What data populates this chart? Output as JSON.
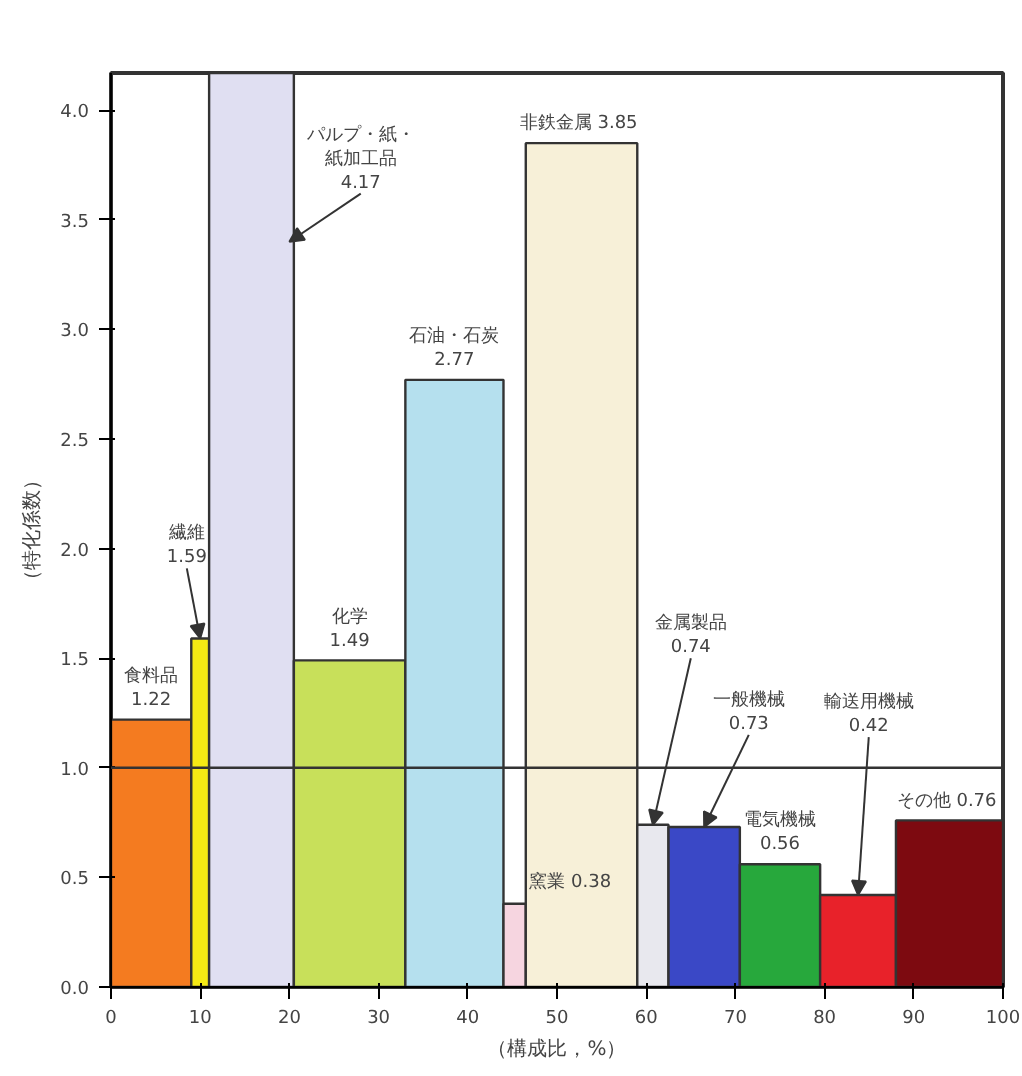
{
  "chart_data": {
    "type": "histogram",
    "xlabel": "（構成比，%）",
    "ylabel": "（特化係数）",
    "bins": [
      0,
      9,
      11,
      20.5,
      33,
      44,
      46.5,
      59,
      62.5,
      70.5,
      79.5,
      88,
      100
    ],
    "values": [
      1.22,
      1.59,
      4.17,
      1.49,
      2.77,
      0.38,
      3.85,
      0.74,
      0.73,
      0.56,
      0.42,
      0.76
    ],
    "colors": [
      "#f47b20",
      "#f5ea14",
      "#e0dff2",
      "#c8e05a",
      "#b5e0ee",
      "#f6d5e0",
      "#f7f0d8",
      "#e8e8ee",
      "#3a48c6",
      "#27a83c",
      "#e8222a",
      "#7d0a10"
    ],
    "annotations": [
      {
        "text": "食料品 1.22",
        "x": 4.5,
        "y": 1.22
      },
      {
        "text": "繊維 1.59",
        "x": 10,
        "y": 1.59
      },
      {
        "text": "パルプ・紙・紙加工品 4.17",
        "x": 20,
        "y": 3.4
      },
      {
        "text": "化学 1.49",
        "x": 26.75,
        "y": 1.49
      },
      {
        "text": "石油・石炭 2.77",
        "x": 38.5,
        "y": 2.77
      },
      {
        "text": "窯業 0.38",
        "x": 45.25,
        "y": 0.38
      },
      {
        "text": "非鉄金属  3.85",
        "x": 52.75,
        "y": 3.85
      },
      {
        "text": "金属製品 0.74",
        "x": 60.75,
        "y": 0.74
      },
      {
        "text": "一般機械 0.73",
        "x": 66.5,
        "y": 0.73
      },
      {
        "text": "電気機械 0.56",
        "x": 75,
        "y": 0.56
      },
      {
        "text": "輸送用機械 0.42",
        "x": 83.75,
        "y": 0.42
      },
      {
        "text": "その他  0.76",
        "x": 94,
        "y": 0.76
      }
    ],
    "ref_lines": [
      {
        "axis": "y",
        "value": 1.0,
        "color": "#333333"
      }
    ],
    "xlim": [
      0,
      100
    ],
    "ylim": [
      0,
      4.17
    ],
    "xticks": [
      0,
      10,
      20,
      30,
      40,
      50,
      60,
      70,
      80,
      90,
      100
    ],
    "yticks": [
      {
        "value": 0,
        "label": "0.0"
      },
      {
        "value": 0.5,
        "label": "0.5"
      },
      {
        "value": 1,
        "label": "1.0"
      },
      {
        "value": 1.5,
        "label": "1.5"
      },
      {
        "value": 2,
        "label": "2.0"
      },
      {
        "value": 2.5,
        "label": "2.5"
      },
      {
        "value": 3,
        "label": "3.0"
      },
      {
        "value": 3.5,
        "label": "3.5"
      },
      {
        "value": 4,
        "label": "4.0"
      }
    ],
    "grid": false
  }
}
